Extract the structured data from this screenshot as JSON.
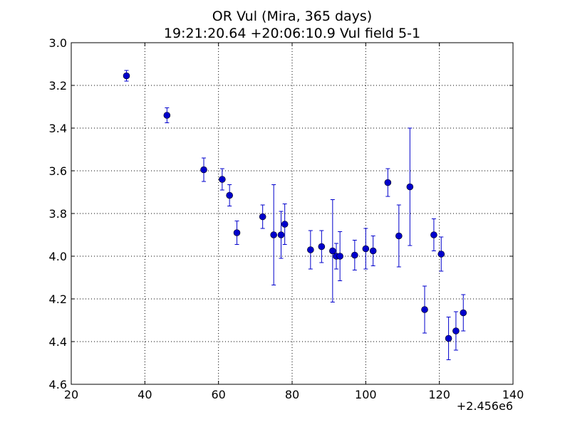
{
  "chart_data": {
    "type": "scatter",
    "title": "OR Vul (Mira, 365 days)",
    "subtitle": "19:21:20.64 +20:06:10.9 Vul field 5-1",
    "xlabel": "",
    "ylabel": "",
    "x_offset_label": "+2.456e6",
    "xlim": [
      20,
      140
    ],
    "ylim": [
      3.0,
      4.6
    ],
    "y_inverted": true,
    "grid": true,
    "grid_style": "dotted",
    "marker_color": "#0000cc",
    "x_ticks": [
      "20",
      "40",
      "60",
      "80",
      "100",
      "120",
      "140"
    ],
    "y_ticks": [
      "3.0",
      "3.2",
      "3.4",
      "3.6",
      "3.8",
      "4.0",
      "4.2",
      "4.4",
      "4.6"
    ],
    "series": [
      {
        "points": [
          {
            "x": 35,
            "y": 3.155,
            "err": 0.025
          },
          {
            "x": 46,
            "y": 3.34,
            "err": 0.035
          },
          {
            "x": 56,
            "y": 3.595,
            "err": 0.055
          },
          {
            "x": 61,
            "y": 3.64,
            "err": 0.05
          },
          {
            "x": 63,
            "y": 3.715,
            "err": 0.05
          },
          {
            "x": 65,
            "y": 3.89,
            "err": 0.055
          },
          {
            "x": 72,
            "y": 3.815,
            "err": 0.055
          },
          {
            "x": 75,
            "y": 3.9,
            "err": 0.235
          },
          {
            "x": 77,
            "y": 3.9,
            "err": 0.11
          },
          {
            "x": 78,
            "y": 3.85,
            "err": 0.095
          },
          {
            "x": 85,
            "y": 3.97,
            "err": 0.09
          },
          {
            "x": 88,
            "y": 3.955,
            "err": 0.075
          },
          {
            "x": 91,
            "y": 3.975,
            "err": 0.24
          },
          {
            "x": 92,
            "y": 4.0,
            "err": 0.06
          },
          {
            "x": 93,
            "y": 4.0,
            "err": 0.115
          },
          {
            "x": 97,
            "y": 3.995,
            "err": 0.07
          },
          {
            "x": 100,
            "y": 3.965,
            "err": 0.095
          },
          {
            "x": 102,
            "y": 3.975,
            "err": 0.07
          },
          {
            "x": 106,
            "y": 3.655,
            "err": 0.065
          },
          {
            "x": 109,
            "y": 3.905,
            "err": 0.145
          },
          {
            "x": 112,
            "y": 3.675,
            "err": 0.275
          },
          {
            "x": 116,
            "y": 4.25,
            "err": 0.11
          },
          {
            "x": 118.5,
            "y": 3.9,
            "err": 0.075
          },
          {
            "x": 120.5,
            "y": 3.99,
            "err": 0.08
          },
          {
            "x": 122.5,
            "y": 4.385,
            "err": 0.1
          },
          {
            "x": 124.5,
            "y": 4.35,
            "err": 0.09
          },
          {
            "x": 126.5,
            "y": 4.265,
            "err": 0.085
          }
        ]
      }
    ]
  }
}
